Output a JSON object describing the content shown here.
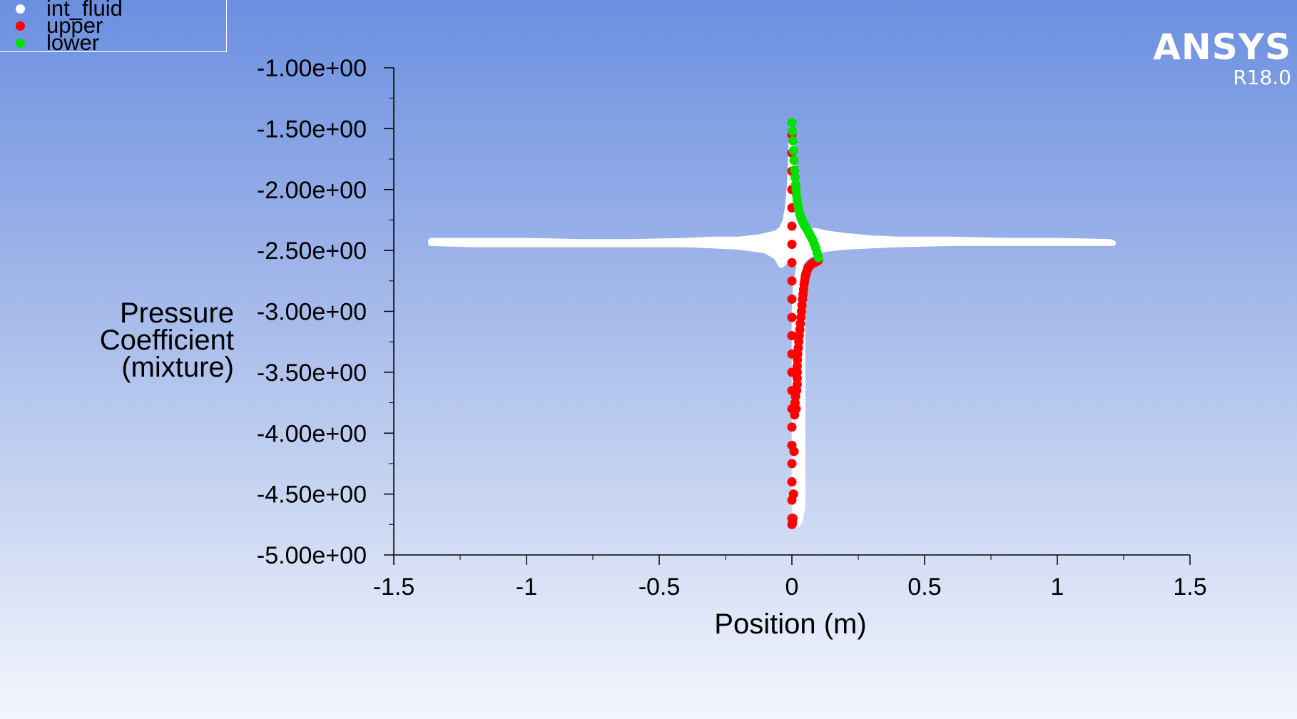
{
  "logo": {
    "name": "ANSYS",
    "version": "R18.0"
  },
  "colors": {
    "int_fluid": "#ffffff",
    "upper": "#ff0000",
    "lower": "#00e000",
    "axis": "#000000"
  },
  "chart_data": {
    "type": "scatter",
    "title": "",
    "xlabel": "Position (m)",
    "ylabel_lines": [
      "Pressure",
      "Coefficient",
      "(mixture)"
    ],
    "xlim": [
      -1.5,
      1.5
    ],
    "ylim": [
      -5.0,
      -1.0
    ],
    "x_ticks": [
      "-1.5",
      "-1",
      "-0.5",
      "0",
      "0.5",
      "1",
      "1.5"
    ],
    "x_tick_values": [
      -1.5,
      -1,
      -0.5,
      0,
      0.5,
      1,
      1.5
    ],
    "y_ticks": [
      "-1.00e+00",
      "-1.50e+00",
      "-2.00e+00",
      "-2.50e+00",
      "-3.00e+00",
      "-3.50e+00",
      "-4.00e+00",
      "-4.50e+00",
      "-5.00e+00"
    ],
    "y_tick_values": [
      -1.0,
      -1.5,
      -2.0,
      -2.5,
      -3.0,
      -3.5,
      -4.0,
      -4.5,
      -5.0
    ],
    "legend_placement": "top-left",
    "grid": false,
    "series": [
      {
        "name": "int_fluid",
        "color": "#ffffff",
        "x": [
          -1.36,
          -1.2,
          -1.0,
          -0.8,
          -0.6,
          -0.4,
          -0.3,
          -0.2,
          -0.12,
          -0.06,
          -0.04,
          -0.025,
          -0.015,
          -0.008,
          -0.004,
          -0.002,
          0.0,
          0.002,
          0.004,
          0.008,
          0.015,
          0.025,
          0.04,
          0.06,
          0.09,
          0.13,
          0.2,
          0.3,
          0.4,
          0.6,
          0.8,
          1.0,
          1.2,
          1.21,
          1.0,
          0.8,
          0.6,
          0.4,
          0.3,
          0.2,
          0.12,
          0.08,
          0.05,
          0.035,
          0.025,
          0.015,
          0.01,
          0.01,
          0.01,
          0.01,
          0.02,
          0.03,
          0.04,
          0.04,
          0.04,
          0.04,
          0.04,
          0.035,
          0.0,
          -0.02,
          -0.04,
          -0.06,
          -0.1,
          -0.2,
          -0.3,
          -0.4,
          -0.6,
          -0.8,
          -1.0,
          -1.2,
          -1.36
        ],
        "y": [
          -2.42,
          -2.42,
          -2.42,
          -2.43,
          -2.43,
          -2.42,
          -2.41,
          -2.41,
          -2.39,
          -2.36,
          -2.33,
          -2.26,
          -2.14,
          -1.96,
          -1.78,
          -1.6,
          -1.5,
          -1.6,
          -1.78,
          -1.96,
          -2.14,
          -2.26,
          -2.32,
          -2.34,
          -2.34,
          -2.36,
          -2.38,
          -2.4,
          -2.41,
          -2.41,
          -2.42,
          -2.42,
          -2.43,
          -2.44,
          -2.44,
          -2.44,
          -2.44,
          -2.45,
          -2.46,
          -2.47,
          -2.49,
          -2.52,
          -2.56,
          -2.6,
          -2.66,
          -2.78,
          -3.0,
          -3.5,
          -4.0,
          -4.6,
          -4.75,
          -4.72,
          -4.6,
          -4.0,
          -3.5,
          -3.0,
          -2.75,
          -2.65,
          -2.55,
          -2.58,
          -2.62,
          -2.55,
          -2.5,
          -2.47,
          -2.46,
          -2.45,
          -2.45,
          -2.45,
          -2.45,
          -2.45,
          -2.44
        ]
      },
      {
        "name": "upper",
        "color": "#ff0000",
        "x": [
          0.0,
          0.0,
          0.0,
          0.0,
          0.0,
          0.0,
          0.0,
          0.0,
          0.0,
          0.0,
          0.0,
          0.0,
          0.0,
          0.0,
          0.0,
          0.0,
          0.0,
          0.0,
          0.0,
          0.0,
          0.0,
          0.0,
          0.0,
          0.002,
          0.004,
          0.006,
          0.008,
          0.01,
          0.012,
          0.014,
          0.016,
          0.018,
          0.02,
          0.02,
          0.02,
          0.02,
          0.021,
          0.022,
          0.024,
          0.026,
          0.028,
          0.03,
          0.032,
          0.034,
          0.036,
          0.038,
          0.04,
          0.042,
          0.044,
          0.046,
          0.048,
          0.05,
          0.052,
          0.055,
          0.058,
          0.062,
          0.066,
          0.07,
          0.075,
          0.08,
          0.085,
          0.09,
          0.095,
          0.1
        ],
        "y": [
          -1.55,
          -1.7,
          -1.85,
          -2.0,
          -2.15,
          -2.3,
          -2.45,
          -2.6,
          -2.75,
          -2.9,
          -3.05,
          -3.2,
          -3.35,
          -3.5,
          -3.65,
          -3.8,
          -3.95,
          -4.1,
          -4.25,
          -4.4,
          -4.55,
          -4.7,
          -4.75,
          -4.74,
          -4.7,
          -4.5,
          -4.15,
          -3.85,
          -3.75,
          -3.7,
          -3.8,
          -3.65,
          -3.6,
          -3.55,
          -3.5,
          -3.45,
          -3.4,
          -3.35,
          -3.3,
          -3.25,
          -3.2,
          -3.15,
          -3.1,
          -3.05,
          -3.0,
          -2.95,
          -2.9,
          -2.86,
          -2.82,
          -2.78,
          -2.75,
          -2.72,
          -2.7,
          -2.68,
          -2.66,
          -2.64,
          -2.63,
          -2.62,
          -2.61,
          -2.6,
          -2.6,
          -2.59,
          -2.59,
          -2.58
        ]
      },
      {
        "name": "lower",
        "color": "#00e000",
        "x": [
          0.0,
          0.002,
          0.004,
          0.006,
          0.008,
          0.01,
          0.012,
          0.014,
          0.016,
          0.018,
          0.02,
          0.023,
          0.026,
          0.03,
          0.034,
          0.038,
          0.042,
          0.046,
          0.05,
          0.055,
          0.06,
          0.065,
          0.07,
          0.075,
          0.08,
          0.085,
          0.09,
          0.095,
          0.1
        ],
        "y": [
          -1.45,
          -1.52,
          -1.6,
          -1.68,
          -1.76,
          -1.84,
          -1.9,
          -1.96,
          -2.0,
          -2.05,
          -2.09,
          -2.13,
          -2.17,
          -2.2,
          -2.23,
          -2.25,
          -2.27,
          -2.29,
          -2.3,
          -2.32,
          -2.34,
          -2.36,
          -2.38,
          -2.4,
          -2.42,
          -2.45,
          -2.48,
          -2.52,
          -2.56
        ]
      }
    ]
  }
}
